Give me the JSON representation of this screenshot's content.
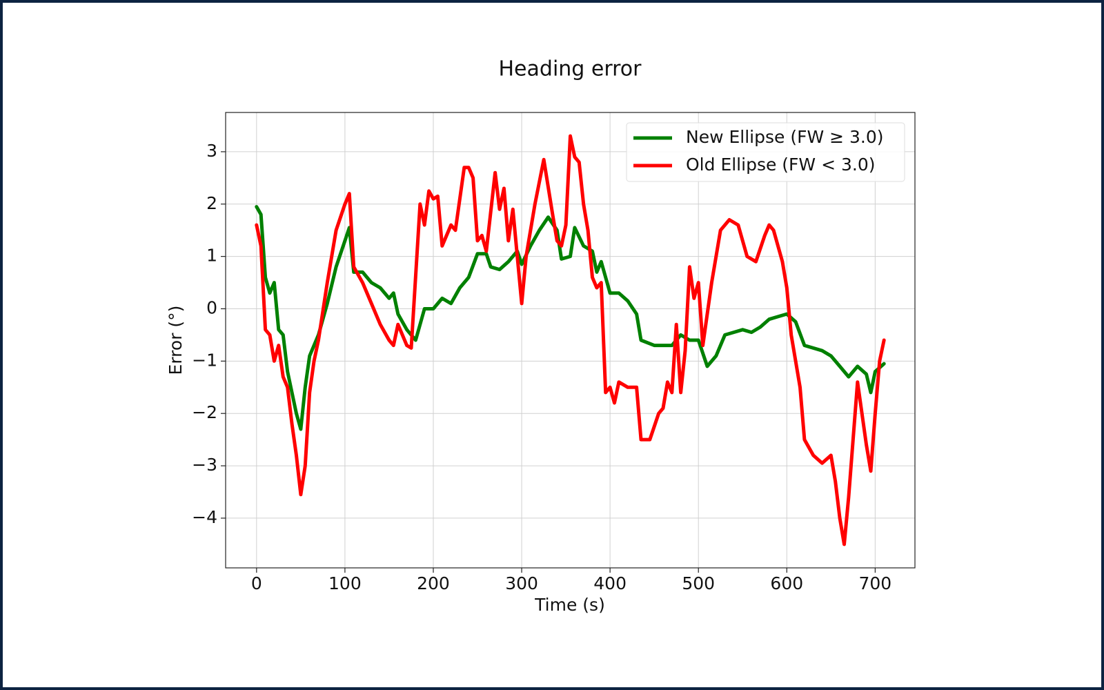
{
  "chart_data": {
    "type": "line",
    "title": "Heading error",
    "x_label": "Time (s)",
    "y_label": "Error (°)",
    "xlim": [
      -35,
      745
    ],
    "ylim": [
      -4.95,
      3.75
    ],
    "xticks": [
      0,
      100,
      200,
      300,
      400,
      500,
      600,
      700
    ],
    "yticks": [
      {
        "value": -4,
        "label": "−4"
      },
      {
        "value": -3,
        "label": "−3"
      },
      {
        "value": -2,
        "label": "−2"
      },
      {
        "value": -1,
        "label": "−1"
      },
      0,
      1,
      2,
      3
    ],
    "grid": true,
    "legend_position": "upper-right",
    "series": [
      {
        "name": "New Ellipse (FW ≥ 3.0)",
        "color": "#008000",
        "x": [
          0,
          5,
          10,
          15,
          20,
          25,
          30,
          35,
          40,
          45,
          50,
          55,
          60,
          65,
          70,
          80,
          90,
          100,
          105,
          110,
          120,
          130,
          140,
          150,
          155,
          160,
          170,
          180,
          190,
          200,
          210,
          220,
          230,
          240,
          250,
          260,
          265,
          275,
          285,
          295,
          300,
          310,
          320,
          330,
          340,
          345,
          355,
          360,
          370,
          380,
          385,
          390,
          400,
          410,
          420,
          430,
          435,
          450,
          460,
          470,
          480,
          490,
          500,
          510,
          520,
          530,
          540,
          550,
          560,
          570,
          580,
          590,
          600,
          610,
          620,
          640,
          650,
          660,
          670,
          680,
          690,
          695,
          700,
          710
        ],
        "values": [
          1.95,
          1.8,
          0.6,
          0.3,
          0.5,
          -0.4,
          -0.5,
          -1.2,
          -1.6,
          -2.0,
          -2.3,
          -1.5,
          -0.9,
          -0.7,
          -0.5,
          0.1,
          0.8,
          1.3,
          1.55,
          0.7,
          0.7,
          0.5,
          0.4,
          0.2,
          0.3,
          -0.1,
          -0.4,
          -0.6,
          0,
          0,
          0.2,
          0.1,
          0.4,
          0.6,
          1.05,
          1.05,
          0.8,
          0.75,
          0.9,
          1.1,
          0.85,
          1.2,
          1.5,
          1.75,
          1.5,
          0.95,
          1.0,
          1.55,
          1.2,
          1.1,
          0.7,
          0.9,
          0.3,
          0.3,
          0.15,
          -0.1,
          -0.6,
          -0.7,
          -0.7,
          -0.7,
          -0.5,
          -0.6,
          -0.6,
          -1.1,
          -0.9,
          -0.5,
          -0.45,
          -0.4,
          -0.45,
          -0.35,
          -0.2,
          -0.15,
          -0.1,
          -0.25,
          -0.7,
          -0.8,
          -0.9,
          -1.1,
          -1.3,
          -1.1,
          -1.25,
          -1.6,
          -1.2,
          -1.05
        ]
      },
      {
        "name": "Old Ellipse (FW < 3.0)",
        "color": "#ff0000",
        "x": [
          0,
          5,
          10,
          15,
          20,
          25,
          30,
          35,
          40,
          45,
          50,
          55,
          60,
          65,
          70,
          80,
          90,
          100,
          105,
          110,
          120,
          130,
          140,
          150,
          155,
          160,
          170,
          175,
          185,
          190,
          195,
          200,
          205,
          210,
          220,
          225,
          230,
          235,
          240,
          245,
          250,
          255,
          260,
          270,
          275,
          280,
          285,
          290,
          295,
          300,
          305,
          315,
          325,
          335,
          340,
          345,
          350,
          355,
          360,
          365,
          370,
          375,
          380,
          385,
          390,
          395,
          400,
          405,
          410,
          420,
          430,
          435,
          445,
          455,
          460,
          465,
          470,
          475,
          480,
          485,
          490,
          495,
          500,
          505,
          515,
          525,
          535,
          545,
          555,
          565,
          575,
          580,
          585,
          595,
          600,
          605,
          615,
          620,
          630,
          640,
          650,
          655,
          660,
          665,
          670,
          680,
          685,
          690,
          695,
          700,
          705,
          710
        ],
        "values": [
          1.6,
          1.2,
          -0.4,
          -0.5,
          -1.0,
          -0.7,
          -1.3,
          -1.5,
          -2.2,
          -2.8,
          -3.55,
          -3.0,
          -1.6,
          -1.0,
          -0.6,
          0.5,
          1.5,
          2.0,
          2.2,
          0.8,
          0.5,
          0.1,
          -0.3,
          -0.6,
          -0.7,
          -0.3,
          -0.7,
          -0.75,
          2.0,
          1.6,
          2.25,
          2.1,
          2.15,
          1.2,
          1.6,
          1.5,
          2.1,
          2.7,
          2.7,
          2.5,
          1.3,
          1.4,
          1.1,
          2.6,
          1.9,
          2.3,
          1.3,
          1.9,
          1.0,
          0.1,
          1.0,
          2.0,
          2.85,
          1.8,
          1.3,
          1.2,
          1.6,
          3.3,
          2.9,
          2.8,
          2.0,
          1.5,
          0.6,
          0.4,
          0.5,
          -1.6,
          -1.5,
          -1.8,
          -1.4,
          -1.5,
          -1.5,
          -2.5,
          -2.5,
          -2.0,
          -1.9,
          -1.4,
          -1.6,
          -0.3,
          -1.6,
          -0.8,
          0.8,
          0.2,
          0.5,
          -0.7,
          0.5,
          1.5,
          1.7,
          1.6,
          1.0,
          0.9,
          1.4,
          1.6,
          1.5,
          0.9,
          0.4,
          -0.5,
          -1.5,
          -2.5,
          -2.8,
          -2.95,
          -2.8,
          -3.3,
          -4.0,
          -4.5,
          -3.6,
          -1.4,
          -2.0,
          -2.6,
          -3.1,
          -2.0,
          -1.0,
          -0.6
        ]
      }
    ]
  }
}
